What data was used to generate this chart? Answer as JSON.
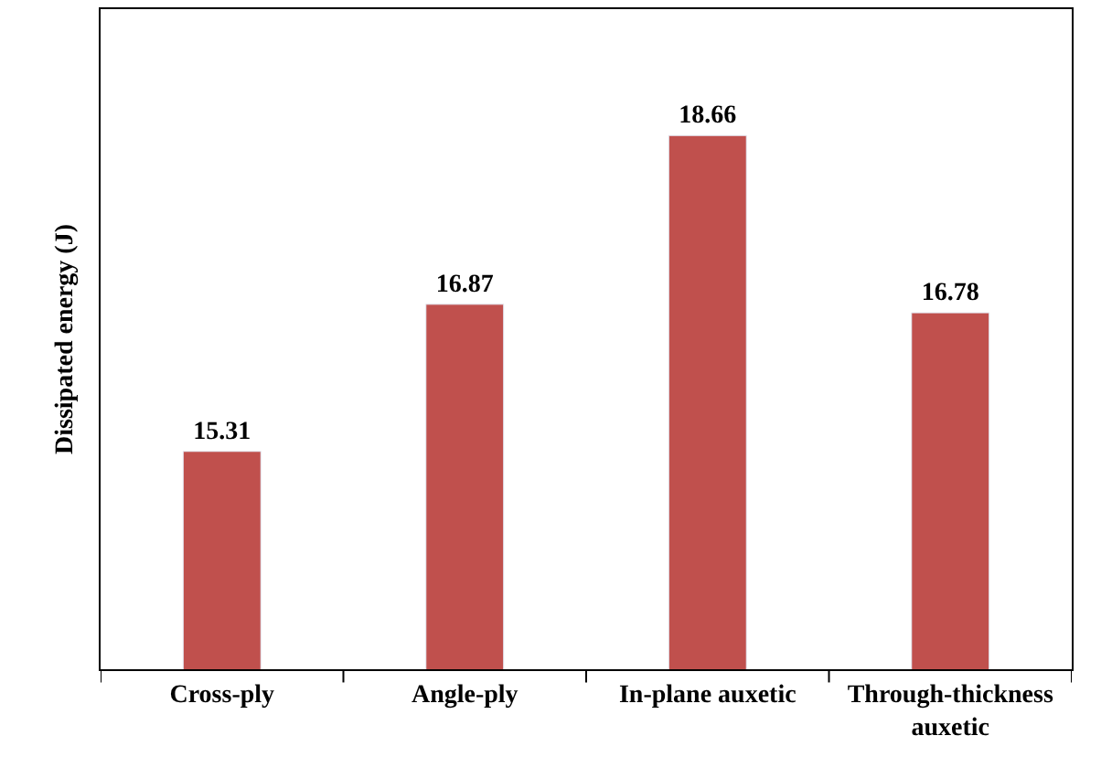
{
  "chart_data": {
    "type": "bar",
    "ylabel": "Dissipated energy (J)",
    "categories": [
      "Cross-ply",
      "Angle-ply",
      "In-plane auxetic",
      "Through-thickness auxetic"
    ],
    "values": [
      15.31,
      16.87,
      18.66,
      16.78
    ],
    "color": "#c0504d",
    "ylim": [
      13,
      20
    ],
    "data_labels": true,
    "legend": false,
    "tick_labels": "x"
  }
}
